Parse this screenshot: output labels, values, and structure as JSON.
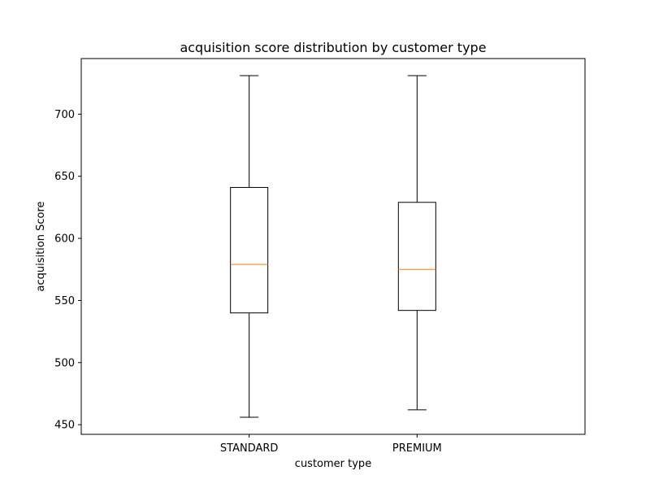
{
  "chart_data": {
    "type": "box",
    "title": "acquisition score distribution by customer type",
    "xlabel": "customer type",
    "ylabel": "acquisition Score",
    "categories": [
      "STANDARD",
      "PREMIUM"
    ],
    "boxes": [
      {
        "category": "STANDARD",
        "whisker_low": 456,
        "q1": 540,
        "median": 579,
        "q3": 641,
        "whisker_high": 731
      },
      {
        "category": "PREMIUM",
        "whisker_low": 462,
        "q1": 542,
        "median": 575,
        "q3": 629,
        "whisker_high": 731
      }
    ],
    "y_ticks": [
      450,
      500,
      550,
      600,
      650,
      700
    ],
    "ylim": [
      442.25,
      744.75
    ],
    "grid": false,
    "legend": "none",
    "colors": {
      "box": "#000000",
      "median": "#ff7f0e"
    }
  }
}
